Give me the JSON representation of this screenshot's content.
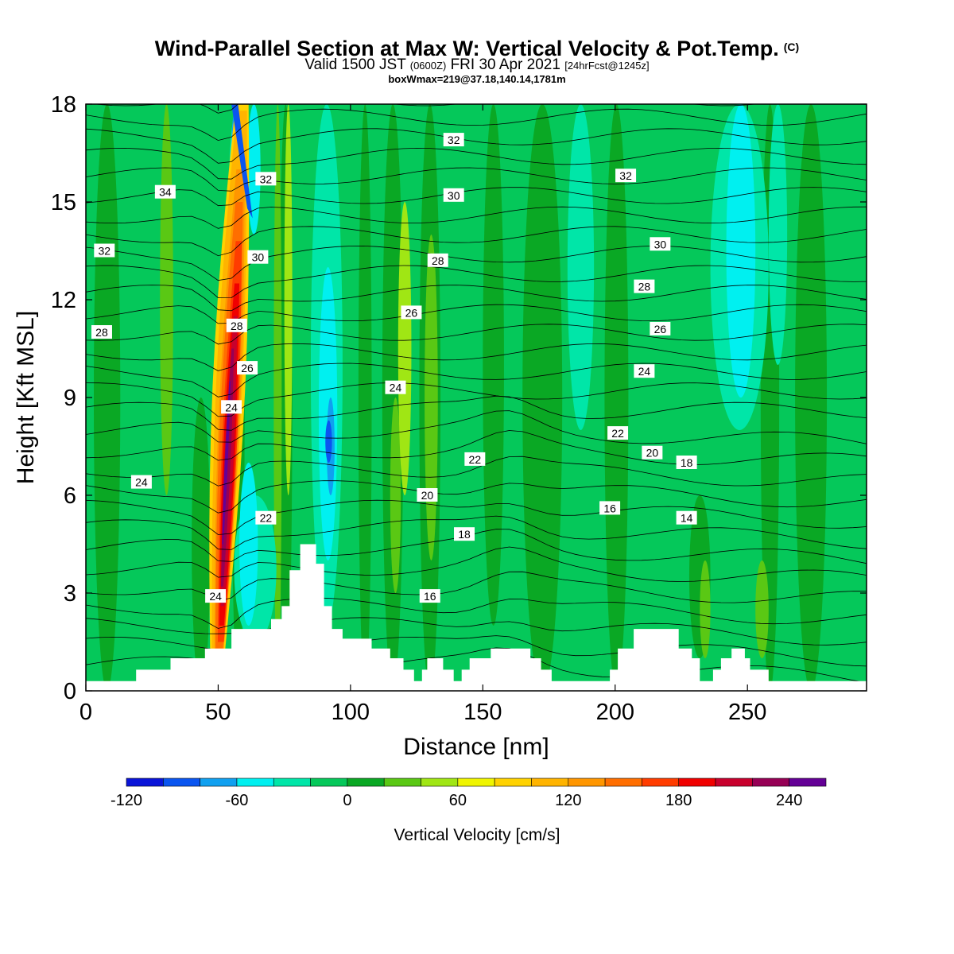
{
  "header": {
    "title": "Wind-Parallel Section at Max W: Vertical Velocity & Pot.Temp.",
    "title_mark": "(C)",
    "valid_prefix": "Valid 1500 JST",
    "valid_utc": "(0600Z)",
    "valid_date": "FRI 30 Apr 2021",
    "forecast_info": "[24hrFcst@1245z]",
    "box_info": "boxWmax=219@37.18,140.14,1781m"
  },
  "chart_data": {
    "type": "heatmap",
    "xlabel": "Distance [nm]",
    "ylabel": "Height [Kft MSL]",
    "xlim": [
      0,
      295
    ],
    "ylim": [
      0,
      18
    ],
    "x_ticks": [
      0,
      50,
      100,
      150,
      200,
      250
    ],
    "y_ticks": [
      0,
      3,
      6,
      9,
      12,
      15,
      18
    ],
    "colorbar": {
      "label": "Vertical Velocity [cm/s]",
      "levels": [
        -120,
        -100,
        -80,
        -60,
        -40,
        -20,
        0,
        20,
        40,
        60,
        80,
        100,
        120,
        140,
        160,
        180,
        200,
        220,
        240,
        260
      ],
      "tick_labels": [
        "-120",
        "-60",
        "0",
        "60",
        "120",
        "180",
        "240"
      ],
      "colors": [
        "#0a14d8",
        "#0a55f0",
        "#10a0f0",
        "#00f0f0",
        "#00e6a8",
        "#05c85a",
        "#0aa824",
        "#5ac814",
        "#a0e614",
        "#f0f500",
        "#ffd200",
        "#ffb400",
        "#ff9600",
        "#ff6e00",
        "#ff3c00",
        "#f00000",
        "#c8002d",
        "#960055",
        "#640096"
      ]
    },
    "features": [
      {
        "name": "updraft core",
        "x": 52,
        "y_range": [
          0.7,
          18
        ],
        "max_w": 219
      },
      {
        "name": "downdraft band",
        "x": 90,
        "y_range": [
          4,
          18
        ],
        "min_w": -100
      },
      {
        "name": "downdraft band",
        "x": 245,
        "y_range": [
          9,
          18
        ],
        "min_w": -40
      }
    ],
    "theta_labels": [
      {
        "text": "34",
        "x": 30,
        "y": 15.3
      },
      {
        "text": "32",
        "x": 7,
        "y": 13.5
      },
      {
        "text": "28",
        "x": 6,
        "y": 11.0
      },
      {
        "text": "24",
        "x": 21,
        "y": 6.4
      },
      {
        "text": "32",
        "x": 68,
        "y": 15.7
      },
      {
        "text": "30",
        "x": 65,
        "y": 13.3
      },
      {
        "text": "28",
        "x": 57,
        "y": 11.2
      },
      {
        "text": "26",
        "x": 61,
        "y": 9.9
      },
      {
        "text": "24",
        "x": 55,
        "y": 8.7
      },
      {
        "text": "22",
        "x": 68,
        "y": 5.3
      },
      {
        "text": "24",
        "x": 49,
        "y": 2.9
      },
      {
        "text": "32",
        "x": 139,
        "y": 16.9
      },
      {
        "text": "30",
        "x": 139,
        "y": 15.2
      },
      {
        "text": "28",
        "x": 133,
        "y": 13.2
      },
      {
        "text": "26",
        "x": 123,
        "y": 11.6
      },
      {
        "text": "24",
        "x": 117,
        "y": 9.3
      },
      {
        "text": "22",
        "x": 147,
        "y": 7.1
      },
      {
        "text": "20",
        "x": 129,
        "y": 6.0
      },
      {
        "text": "18",
        "x": 143,
        "y": 4.8
      },
      {
        "text": "16",
        "x": 130,
        "y": 2.9
      },
      {
        "text": "32",
        "x": 204,
        "y": 15.8
      },
      {
        "text": "30",
        "x": 217,
        "y": 13.7
      },
      {
        "text": "28",
        "x": 211,
        "y": 12.4
      },
      {
        "text": "26",
        "x": 217,
        "y": 11.1
      },
      {
        "text": "24",
        "x": 211,
        "y": 9.8
      },
      {
        "text": "22",
        "x": 201,
        "y": 7.9
      },
      {
        "text": "20",
        "x": 214,
        "y": 7.3
      },
      {
        "text": "18",
        "x": 227,
        "y": 7.0
      },
      {
        "text": "16",
        "x": 198,
        "y": 5.6
      },
      {
        "text": "14",
        "x": 227,
        "y": 5.3
      }
    ],
    "terrain_profile": [
      [
        0,
        0.3
      ],
      [
        19,
        0.3
      ],
      [
        19,
        0.65
      ],
      [
        32,
        0.65
      ],
      [
        32,
        1.0
      ],
      [
        45,
        1.0
      ],
      [
        45,
        1.3
      ],
      [
        55,
        1.3
      ],
      [
        55,
        1.9
      ],
      [
        70,
        1.9
      ],
      [
        70,
        2.2
      ],
      [
        74,
        2.2
      ],
      [
        74,
        2.6
      ],
      [
        77,
        2.6
      ],
      [
        77,
        3.7
      ],
      [
        81,
        3.7
      ],
      [
        81,
        4.5
      ],
      [
        87,
        4.5
      ],
      [
        87,
        3.9
      ],
      [
        90,
        3.9
      ],
      [
        90,
        2.6
      ],
      [
        93,
        2.6
      ],
      [
        93,
        1.9
      ],
      [
        97,
        1.9
      ],
      [
        97,
        1.6
      ],
      [
        108,
        1.6
      ],
      [
        108,
        1.3
      ],
      [
        115,
        1.3
      ],
      [
        115,
        1.0
      ],
      [
        120,
        1.0
      ],
      [
        120,
        0.65
      ],
      [
        124,
        0.65
      ],
      [
        124,
        0.3
      ],
      [
        127,
        0.3
      ],
      [
        127,
        0.65
      ],
      [
        129,
        0.65
      ],
      [
        129,
        1.0
      ],
      [
        135,
        1.0
      ],
      [
        135,
        0.65
      ],
      [
        139,
        0.65
      ],
      [
        139,
        0.3
      ],
      [
        142,
        0.3
      ],
      [
        142,
        0.65
      ],
      [
        145,
        0.65
      ],
      [
        145,
        1.0
      ],
      [
        153,
        1.0
      ],
      [
        153,
        1.3
      ],
      [
        168,
        1.3
      ],
      [
        168,
        1.0
      ],
      [
        172,
        1.0
      ],
      [
        172,
        0.65
      ],
      [
        176,
        0.65
      ],
      [
        176,
        0.3
      ],
      [
        198,
        0.3
      ],
      [
        198,
        0.65
      ],
      [
        201,
        0.65
      ],
      [
        201,
        1.3
      ],
      [
        207,
        1.3
      ],
      [
        207,
        1.9
      ],
      [
        224,
        1.9
      ],
      [
        224,
        1.3
      ],
      [
        229,
        1.3
      ],
      [
        229,
        1.0
      ],
      [
        232,
        1.0
      ],
      [
        232,
        0.3
      ],
      [
        237,
        0.3
      ],
      [
        237,
        0.65
      ],
      [
        240,
        0.65
      ],
      [
        240,
        1.0
      ],
      [
        244,
        1.0
      ],
      [
        244,
        1.3
      ],
      [
        249,
        1.3
      ],
      [
        249,
        1.0
      ],
      [
        251,
        1.0
      ],
      [
        251,
        0.65
      ],
      [
        258,
        0.65
      ],
      [
        258,
        0.3
      ],
      [
        295,
        0.3
      ]
    ]
  }
}
